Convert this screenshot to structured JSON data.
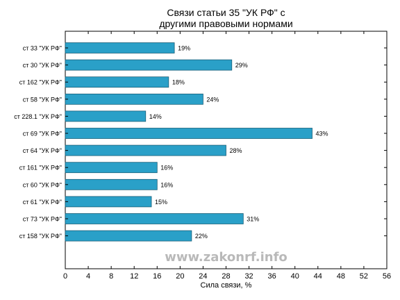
{
  "chart_data": {
    "type": "bar",
    "orientation": "horizontal",
    "title_lines": [
      "Связи статьи 35 \"УК РФ\" с",
      "другими правовыми нормами"
    ],
    "xlabel": "Сила связи, %",
    "ylabel": "",
    "xlim": [
      0,
      56
    ],
    "xticks": [
      "0",
      "4",
      "8",
      "12",
      "16",
      "20",
      "24",
      "28",
      "32",
      "36",
      "40",
      "44",
      "48",
      "52",
      "56"
    ],
    "grid": false,
    "categories": [
      "ст 33 \"УК РФ\"",
      "ст 30 \"УК РФ\"",
      "ст 162 \"УК РФ\"",
      "ст 58 \"УК РФ\"",
      "ст 228.1 \"УК РФ\"",
      "ст 69 \"УК РФ\"",
      "ст 64 \"УК РФ\"",
      "ст 161 \"УК РФ\"",
      "ст 60 \"УК РФ\"",
      "ст 61 \"УК РФ\"",
      "ст 73 \"УК РФ\"",
      "ст 158 \"УК РФ\""
    ],
    "values": [
      19,
      29,
      18,
      24,
      14,
      43,
      28,
      16,
      16,
      15,
      31,
      22
    ],
    "value_labels": [
      "19%",
      "29%",
      "18%",
      "24%",
      "14%",
      "43%",
      "28%",
      "16%",
      "16%",
      "15%",
      "31%",
      "22%"
    ],
    "bar_color": "#2aa0c8",
    "bar_edge_color": "#1a5f78"
  },
  "watermark": "www.zakonrf.info"
}
